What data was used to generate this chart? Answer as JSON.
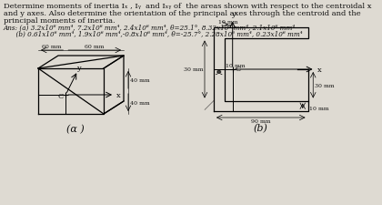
{
  "bg_color": "#dedad2",
  "text_color": "#111111",
  "title_line1": "Determine moments of inertia Iₓ , Iᵧ  and Iₓᵧ of  the areas shown with respect to the centroidal x",
  "title_line2": "and y axes. Also determine the orientation of the principal axes through the centroid and the",
  "title_line3": "principal moments of inertia.",
  "ans_line1": "Ans: (a) 3.2x10⁶ mm⁴, 7.2x10⁶ mm⁴, 2.4x10⁶ mm⁴, θ=25.1°, 8.32x10⁶ mm⁴, 2.1x10⁶ mm⁴",
  "ans_line2": "      (b) 0.61x10⁶ mm⁴, 1.9x10⁶ mm⁴,-0.8x10⁶ mm⁴, θ=-25.7°, 2.28x10⁶ mm⁴, 0.23x10⁶ mm⁴",
  "fig_a_label": "(α )",
  "fig_b_label": "(b)",
  "dim_a_60left": "60 mm",
  "dim_a_60right": "60 mm",
  "dim_a_40top": "40 mm",
  "dim_a_40bot": "40 mm",
  "dim_b_10top": "10 mm",
  "dim_b_30left": "30 mm",
  "dim_b_10mid": "10 mm",
  "dim_b_30right": "30 mm",
  "dim_b_90bot": "90 mm",
  "dim_b_10br": "10 mm"
}
